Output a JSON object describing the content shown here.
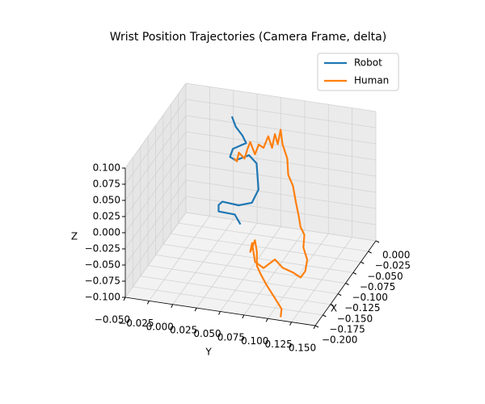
{
  "chart_data": {
    "type": "line3d",
    "title": "Wrist Position Trajectories (Camera Frame, delta)",
    "xlabel": "X",
    "ylabel": "Y",
    "zlabel": "Z",
    "xlim": [
      -0.2,
      0
    ],
    "ylim": [
      -0.05,
      0.15
    ],
    "zlim": [
      -0.1,
      0.1
    ],
    "xticks": [
      {
        "value": 0,
        "label": "0.000"
      },
      {
        "value": -0.025,
        "label": "−0.025"
      },
      {
        "value": -0.05,
        "label": "−0.050"
      },
      {
        "value": -0.075,
        "label": "−0.075"
      },
      {
        "value": -0.1,
        "label": "−0.100"
      },
      {
        "value": -0.125,
        "label": "−0.125"
      },
      {
        "value": -0.15,
        "label": "−0.150"
      },
      {
        "value": -0.175,
        "label": "−0.175"
      },
      {
        "value": -0.2,
        "label": "−0.200"
      }
    ],
    "yticks": [
      {
        "value": -0.05,
        "label": "−0.050"
      },
      {
        "value": -0.025,
        "label": "−0.025"
      },
      {
        "value": 0,
        "label": "0.000"
      },
      {
        "value": 0.025,
        "label": "0.025"
      },
      {
        "value": 0.05,
        "label": "0.050"
      },
      {
        "value": 0.075,
        "label": "0.075"
      },
      {
        "value": 0.1,
        "label": "0.100"
      },
      {
        "value": 0.125,
        "label": "0.125"
      },
      {
        "value": 0.15,
        "label": "0.150"
      }
    ],
    "zticks": [
      {
        "value": -0.1,
        "label": "−0.100"
      },
      {
        "value": -0.075,
        "label": "−0.075"
      },
      {
        "value": -0.05,
        "label": "−0.050"
      },
      {
        "value": -0.025,
        "label": "−0.025"
      },
      {
        "value": 0,
        "label": "0.000"
      },
      {
        "value": 0.025,
        "label": "0.025"
      },
      {
        "value": 0.05,
        "label": "0.050"
      },
      {
        "value": 0.075,
        "label": "0.075"
      },
      {
        "value": 0.1,
        "label": "0.100"
      }
    ],
    "grid": true,
    "legend": "upper right",
    "series": [
      {
        "name": "Robot",
        "color": "#1f77b4",
        "x": [
          -0.03,
          -0.03,
          -0.03,
          -0.03,
          -0.03,
          -0.03,
          -0.03,
          -0.03,
          -0.03,
          -0.03,
          -0.03,
          -0.03,
          -0.03,
          -0.03,
          -0.03,
          -0.03,
          -0.03,
          -0.03
        ],
        "y": [
          0.008,
          0.012,
          0.019,
          0.023,
          0.017,
          0.009,
          0.006,
          0.012,
          0.026,
          0.034,
          0.036,
          0.029,
          0.015,
          -0.002,
          -0.006,
          -0.006,
          0.011,
          0.017
        ],
        "z": [
          0.081,
          0.066,
          0.054,
          0.043,
          0.038,
          0.031,
          0.018,
          0.014,
          0.025,
          0.014,
          -0.026,
          -0.048,
          -0.055,
          -0.053,
          -0.059,
          -0.069,
          -0.07,
          -0.084
        ]
      },
      {
        "name": "Human",
        "color": "#ff7f0e",
        "x": [
          -0.12,
          -0.12,
          -0.12,
          -0.12,
          -0.12,
          -0.12,
          -0.12,
          -0.12,
          -0.12,
          -0.12,
          -0.12,
          -0.12,
          -0.12,
          -0.12,
          -0.12,
          -0.12,
          -0.12,
          -0.12,
          -0.12,
          -0.12,
          -0.12,
          -0.12,
          -0.12,
          -0.12,
          -0.12,
          -0.12,
          -0.12,
          -0.12,
          -0.12,
          -0.12,
          -0.12,
          -0.12,
          -0.12,
          -0.12,
          -0.12,
          -0.12,
          -0.12,
          -0.12,
          -0.12,
          -0.12,
          -0.12
        ],
        "y": [
          0.039,
          0.042,
          0.044,
          0.05,
          0.053,
          0.056,
          0.061,
          0.065,
          0.07,
          0.075,
          0.079,
          0.082,
          0.085,
          0.088,
          0.09,
          0.095,
          0.096,
          0.101,
          0.104,
          0.107,
          0.109,
          0.113,
          0.112,
          0.116,
          0.114,
          0.109,
          0.101,
          0.09,
          0.082,
          0.07,
          0.061,
          0.058,
          0.056,
          0.061,
          0.063,
          0.063,
          0.067,
          0.073,
          0.082,
          0.089,
          0.088
        ],
        "z": [
          0.082,
          0.078,
          0.092,
          0.084,
          0.099,
          0.111,
          0.093,
          0.109,
          0.105,
          0.124,
          0.107,
          0.129,
          0.114,
          0.137,
          0.115,
          0.094,
          0.069,
          0.053,
          0.029,
          0.008,
          -0.009,
          -0.02,
          -0.04,
          -0.058,
          -0.076,
          -0.087,
          -0.081,
          -0.076,
          -0.065,
          -0.081,
          -0.073,
          -0.045,
          -0.059,
          -0.04,
          -0.057,
          -0.079,
          -0.091,
          -0.106,
          -0.125,
          -0.14,
          -0.153
        ]
      }
    ]
  }
}
